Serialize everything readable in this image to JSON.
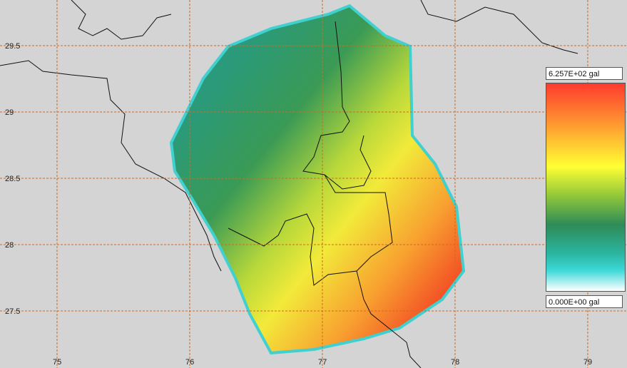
{
  "map": {
    "xlim": [
      74.57,
      79.296
    ],
    "ylim": [
      27.07,
      29.844
    ],
    "xticks": [
      75,
      76,
      77,
      78,
      79
    ],
    "yticks": [
      29.5,
      29,
      28.5,
      28,
      27.5
    ]
  },
  "legend": {
    "max_label": "6.257E+02 gal",
    "min_label": "0.000E+00 gal"
  }
}
